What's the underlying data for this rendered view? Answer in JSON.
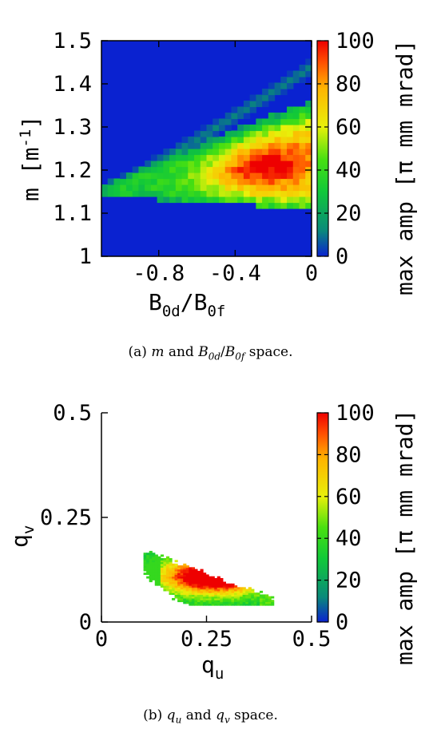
{
  "chart_data": [
    {
      "type": "heatmap",
      "caption": "(a) m and B0d/B0f space.",
      "xlabel": "B0d/B0f",
      "ylabel": "m [m-1]",
      "colorbar_label": "max amp [π mm mrad]",
      "xlim": [
        -1.1,
        0.0
      ],
      "ylim": [
        1.0,
        1.5
      ],
      "x_ticks": [
        "-0.8",
        "-0.4",
        "0"
      ],
      "y_ticks": [
        "1",
        "1.1",
        "1.2",
        "1.3",
        "1.4",
        "1.5"
      ],
      "colorbar_range": [
        0,
        100
      ],
      "colorbar_ticks": [
        "0",
        "20",
        "40",
        "60",
        "80",
        "100"
      ],
      "background_value": 0,
      "features": [
        {
          "name": "resonance band upper",
          "x_range": [
            -1.1,
            0.0
          ],
          "m_at_left": 1.15,
          "m_at_right": 1.44,
          "max_amp": 12
        },
        {
          "name": "main island",
          "x_range": [
            -1.1,
            0.0
          ],
          "m_low": 1.11,
          "m_high_at_right": 1.35,
          "peak_x": -0.25,
          "peak_m": 1.2,
          "max_amp": 100
        }
      ]
    },
    {
      "type": "heatmap",
      "caption": "(b) qu and qv space.",
      "xlabel": "qu",
      "ylabel": "qv",
      "colorbar_label": "max amp [π mm mrad]",
      "xlim": [
        0.0,
        0.5
      ],
      "ylim": [
        0.0,
        0.5
      ],
      "x_ticks": [
        "0",
        "0.25",
        "0.5"
      ],
      "y_ticks": [
        "0",
        "0.25",
        "0.5"
      ],
      "colorbar_range": [
        0,
        100
      ],
      "colorbar_ticks": [
        "0",
        "20",
        "40",
        "60",
        "80",
        "100"
      ],
      "region": {
        "qu_range": [
          0.1,
          0.41
        ],
        "qv_range": [
          0.04,
          0.17
        ],
        "peak_qu": 0.27,
        "peak_qv": 0.11,
        "max_amp": 100
      }
    }
  ],
  "text": {
    "a_xlabel_main": "B",
    "a_xlabel_sub1": "0d",
    "a_xlabel_slash": "/B",
    "a_xlabel_sub2": "0f",
    "a_ylabel_main": "m  [m",
    "a_ylabel_sup": "-1",
    "a_ylabel_close": "]",
    "cb_label": "max amp [π mm mrad]",
    "b_xlabel_main": "q",
    "b_xlabel_sub": "u",
    "b_ylabel_main": "q",
    "b_ylabel_sub": "v",
    "caption_a_prefix": "(a) ",
    "caption_a_m": "m",
    "caption_a_and": " and ",
    "caption_a_B1": "B",
    "caption_a_B1sub": "0d",
    "caption_a_slash": "/",
    "caption_a_B2": "B",
    "caption_a_B2sub": "0f",
    "caption_a_suffix": " space.",
    "caption_b_prefix": "(b) ",
    "caption_b_q1": "q",
    "caption_b_q1sub": "u",
    "caption_b_and": " and ",
    "caption_b_q2": "q",
    "caption_b_q2sub": "v",
    "caption_b_suffix": " space."
  }
}
